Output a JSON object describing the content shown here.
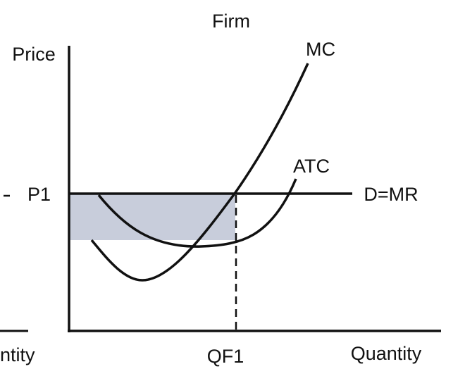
{
  "header": {
    "title": "Firm"
  },
  "axes": {
    "y_label": "Price",
    "x_label": "Quantity",
    "left_panel_x_label": "ntity"
  },
  "labels": {
    "mc": "MC",
    "atc": "ATC",
    "price_level": "P1",
    "demand": "D=MR",
    "quantity": "QF1"
  }
}
